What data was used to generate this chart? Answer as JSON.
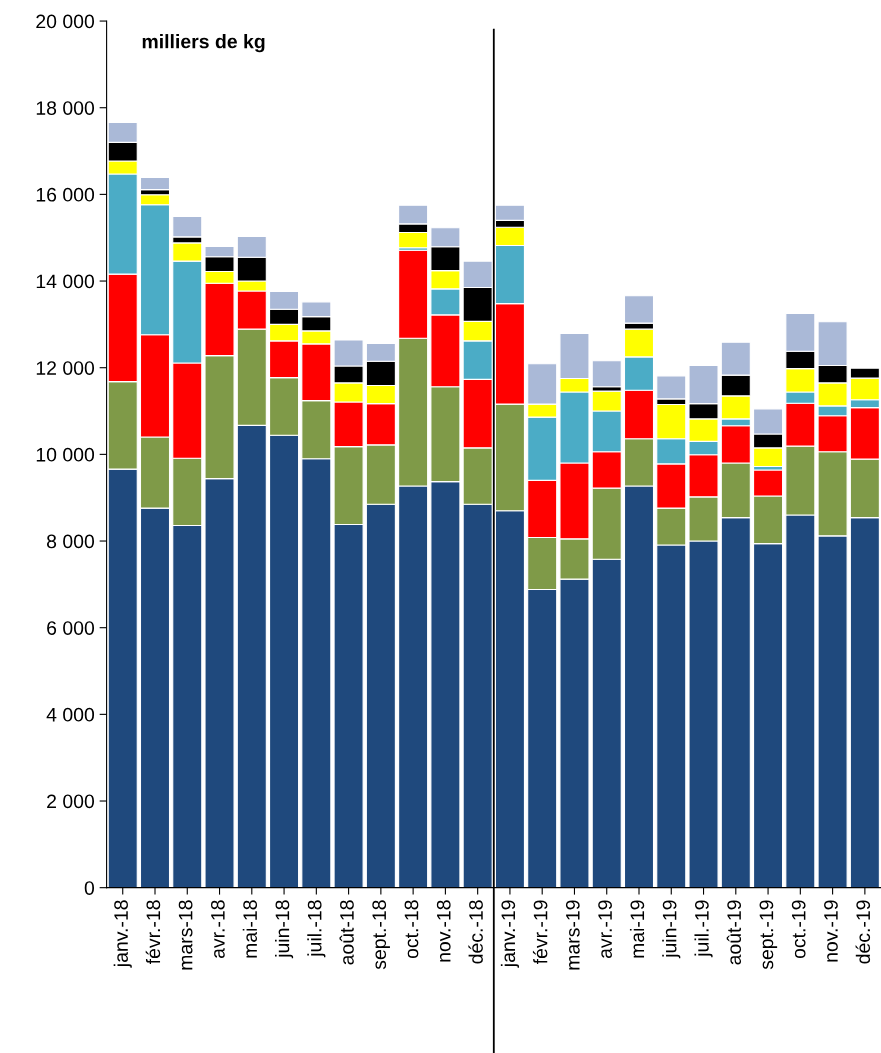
{
  "chart_data": {
    "type": "bar",
    "stacked": true,
    "title": "milliers de kg",
    "categories": [
      "janv.-18",
      "févr.-18",
      "mars-18",
      "avr.-18",
      "mai-18",
      "juin-18",
      "juil.-18",
      "août-18",
      "sept.-18",
      "oct.-18",
      "nov.-18",
      "déc.-18",
      "janv.-19",
      "févr.-19",
      "mars-19",
      "avr.-19",
      "mai-19",
      "juin-19",
      "juil.-19",
      "août-19",
      "sept.-19",
      "oct.-19",
      "nov.-19",
      "déc.-19"
    ],
    "series": [
      {
        "color": "#1f497d",
        "values": [
          9660,
          8760,
          8360,
          9440,
          10670,
          10440,
          9900,
          8380,
          8850,
          9270,
          9370,
          8850,
          8700,
          6880,
          7120,
          7580,
          9270,
          7910,
          8000,
          8540,
          7940,
          8600,
          8120,
          8540
        ]
      },
      {
        "color": "#7f9a48",
        "values": [
          2020,
          1640,
          1550,
          2840,
          2220,
          1330,
          1340,
          1800,
          1370,
          3410,
          2190,
          1300,
          2460,
          1200,
          930,
          1640,
          1090,
          850,
          1020,
          1260,
          1100,
          1590,
          1940,
          1350
        ]
      },
      {
        "color": "#ff0000",
        "values": [
          2480,
          2360,
          2200,
          1670,
          880,
          850,
          1310,
          1030,
          950,
          2030,
          1660,
          1580,
          2320,
          1320,
          1750,
          840,
          1120,
          1020,
          970,
          860,
          600,
          990,
          830,
          1190
        ]
      },
      {
        "color": "#4bacc6",
        "values": [
          2310,
          3000,
          2350,
          null,
          0,
          0,
          0,
          0,
          0,
          60,
          600,
          890,
          1340,
          1460,
          1640,
          940,
          770,
          580,
          310,
          160,
          80,
          260,
          230,
          180
        ]
      },
      {
        "color": "#ffff00",
        "values": [
          300,
          230,
          420,
          270,
          230,
          380,
          300,
          440,
          420,
          350,
          420,
          450,
          420,
          300,
          310,
          460,
          640,
          790,
          520,
          530,
          430,
          540,
          530,
          500
        ]
      },
      {
        "color": "#000000",
        "values": [
          430,
          120,
          140,
          340,
          550,
          350,
          330,
          390,
          560,
          200,
          550,
          780,
          160,
          0,
          null,
          100,
          140,
          130,
          350,
          480,
          320,
          400,
          400,
          230
        ]
      },
      {
        "color": "#aab9d7",
        "values": [
          460,
          280,
          470,
          240,
          480,
          410,
          340,
          600,
          410,
          430,
          440,
          610,
          350,
          930,
          1040,
          600,
          630,
          530,
          880,
          760,
          580,
          870,
          1010,
          0
        ]
      }
    ],
    "ylim": [
      0,
      20000
    ],
    "yticks": [
      {
        "value": 0,
        "label": "0"
      },
      {
        "value": 2000,
        "label": "2 000"
      },
      {
        "value": 4000,
        "label": "4 000"
      },
      {
        "value": 6000,
        "label": "6 000"
      },
      {
        "value": 8000,
        "label": "8 000"
      },
      {
        "value": 10000,
        "label": "10 000"
      },
      {
        "value": 12000,
        "label": "12 000"
      },
      {
        "value": 14000,
        "label": "14 000"
      },
      {
        "value": 16000,
        "label": "16 000"
      },
      {
        "value": 18000,
        "label": "18 000"
      },
      {
        "value": 20000,
        "label": "20 000"
      }
    ],
    "grid": false,
    "legend": false
  }
}
